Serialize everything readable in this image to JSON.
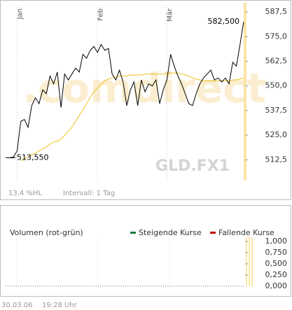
{
  "chart_data": [
    {
      "type": "line",
      "watermark": ".comdirect",
      "symbol": "GLD.FX1",
      "range_info": "13,4 %HL",
      "interval": "Intervall: 1 Tag",
      "categories": [
        null,
        null,
        "Jan",
        null,
        null,
        null,
        null,
        null,
        null,
        null,
        null,
        null,
        null,
        null,
        null,
        null,
        null,
        null,
        null,
        null,
        null,
        null,
        null,
        null,
        "Feb",
        null,
        null,
        null,
        null,
        null,
        null,
        null,
        null,
        null,
        null,
        null,
        null,
        null,
        null,
        null,
        null,
        null,
        null,
        "Mär",
        null,
        null,
        null,
        null,
        null,
        null,
        null,
        null,
        null,
        null,
        null,
        null,
        null,
        null,
        null,
        null,
        null,
        null,
        null,
        null,
        null
      ],
      "series": [
        {
          "color": "#000000",
          "values": [
            513.55,
            514,
            517,
            532,
            533,
            529,
            540,
            544,
            541,
            548,
            546,
            555,
            551,
            557,
            539,
            556,
            553,
            556,
            559,
            557,
            566,
            564,
            568,
            570,
            567,
            571,
            568,
            569,
            556,
            553,
            558,
            552,
            540,
            548,
            552,
            540,
            553,
            547,
            551,
            550,
            553,
            541,
            548,
            553,
            566,
            560,
            555,
            551,
            546,
            541,
            540,
            546,
            551,
            554,
            556,
            558,
            553,
            554,
            552,
            554,
            551,
            562,
            560,
            571,
            582.5
          ]
        },
        {
          "color": "#f0c020",
          "values": [
            null,
            null,
            null,
            512,
            513,
            514,
            515,
            516,
            517,
            518,
            519,
            520.5,
            521.5,
            522,
            523,
            525,
            527,
            529,
            532,
            535,
            538,
            541,
            544,
            547,
            549,
            551,
            552.5,
            553.5,
            554,
            554.5,
            555,
            555,
            555,
            555.5,
            555.5,
            555.5,
            555.5,
            556,
            556,
            556,
            556,
            556,
            556,
            556.5,
            556.5,
            556.5,
            556.5,
            556,
            555.5,
            555,
            554,
            553.5,
            553,
            552.5,
            552.5,
            552.5,
            552.5,
            552.5,
            552.5,
            552.5,
            552.5,
            553,
            553,
            553.5,
            554
          ]
        }
      ],
      "annotations": [
        "513,550",
        "582,500"
      ],
      "ylim": [
        502,
        590
      ],
      "yticks": [
        {
          "value": 512.5,
          "label": "512,5"
        },
        {
          "value": 525,
          "label": "525,0"
        },
        {
          "value": 537.5,
          "label": "537,5"
        },
        {
          "value": 550,
          "label": "550,0"
        },
        {
          "value": 562.5,
          "label": "562,5"
        },
        {
          "value": 575,
          "label": "575,0"
        },
        {
          "value": 587.5,
          "label": "587,5"
        }
      ]
    },
    {
      "type": "bar",
      "title": "Volumen (rot-grün)",
      "series": [
        {
          "name": "Steigende Kurse",
          "color": "#1a7a3a",
          "values": []
        },
        {
          "name": "Fallende Kurse",
          "color": "#c00000",
          "values": []
        }
      ],
      "ylim": [
        0,
        1
      ],
      "yticks": [
        {
          "value": 0,
          "label": "0,000"
        },
        {
          "value": 0.25,
          "label": "0,250"
        },
        {
          "value": 0.5,
          "label": "0,500"
        },
        {
          "value": 0.75,
          "label": "0,750"
        },
        {
          "value": 1,
          "label": "1,000"
        }
      ]
    }
  ],
  "footer": {
    "date": "30.03.06",
    "time": "19:28 Uhr"
  }
}
